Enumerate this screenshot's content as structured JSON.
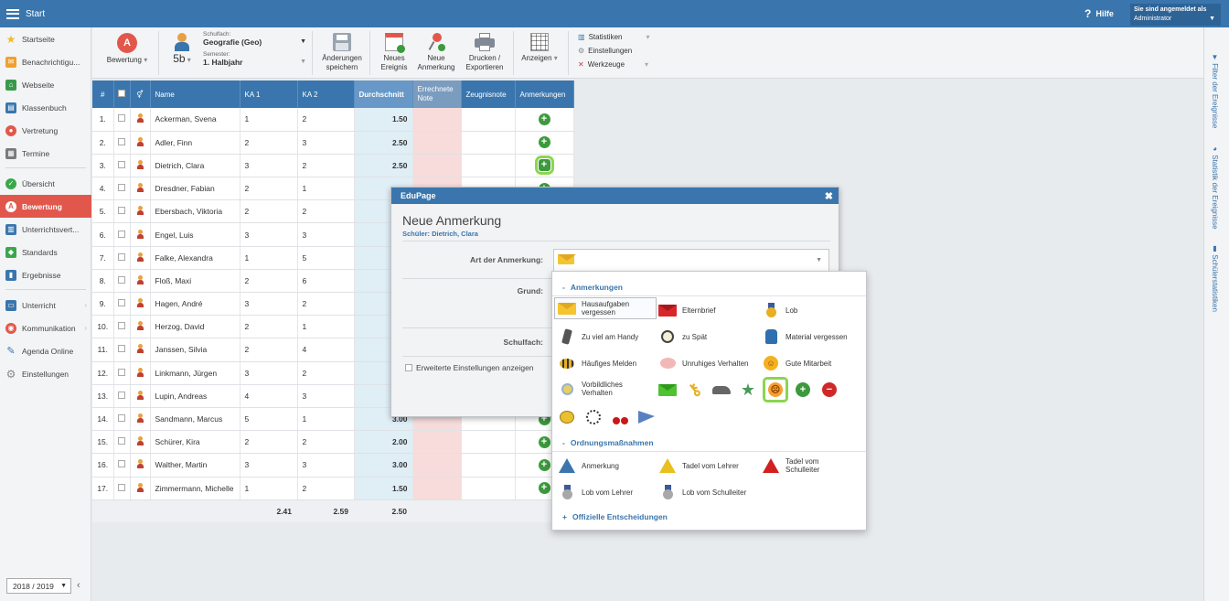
{
  "topbar": {
    "title": "Start",
    "help": "Hilfe",
    "login_line1": "Sie sind angemeldet als",
    "login_line2": "Administrator"
  },
  "sidebar": {
    "items": [
      {
        "label": "Startseite",
        "color": "#f2b92c",
        "glyph": "★"
      },
      {
        "label": "Benachrichtigu...",
        "color": "#f0a030",
        "glyph": "✉"
      },
      {
        "label": "Webseite",
        "color": "#3a9a4a",
        "glyph": "⌂"
      },
      {
        "label": "Klassenbuch",
        "color": "#3a76ad",
        "glyph": "▤"
      },
      {
        "label": "Vertretung",
        "color": "#e2574c",
        "glyph": "●"
      },
      {
        "label": "Termine",
        "color": "#7a7a7a",
        "glyph": "▦"
      },
      {
        "label": "Übersicht",
        "color": "#3aa84a",
        "glyph": "✓"
      },
      {
        "label": "Bewertung",
        "color": "#ffffff",
        "glyph": "A"
      },
      {
        "label": "Unterrichtsvert...",
        "color": "#3a76ad",
        "glyph": "▥"
      },
      {
        "label": "Standards",
        "color": "#3aa84a",
        "glyph": "◆"
      },
      {
        "label": "Ergebnisse",
        "color": "#3a76ad",
        "glyph": "▮"
      },
      {
        "label": "Unterricht",
        "color": "#3a76ad",
        "glyph": "▭"
      },
      {
        "label": "Kommunikation",
        "color": "#e2574c",
        "glyph": "◉"
      },
      {
        "label": "Agenda Online",
        "color": "#3a76ad",
        "glyph": "✎"
      },
      {
        "label": "Einstellungen",
        "color": "#8a8a8a",
        "glyph": "⚙"
      }
    ],
    "year": "2018 / 2019"
  },
  "toolbar": {
    "bewertung": "Bewertung",
    "class_value": "5b",
    "schulfach_caption": "Schulfach:",
    "schulfach_value": "Geografie (Geo)",
    "semester_caption": "Semester:",
    "semester_value": "1. Halbjahr",
    "save_l1": "Änderungen",
    "save_l2": "speichern",
    "event_l1": "Neues",
    "event_l2": "Ereignis",
    "remark_l1": "Neue",
    "remark_l2": "Anmerkung",
    "print_l1": "Drucken /",
    "print_l2": "Exportieren",
    "show": "Anzeigen",
    "statistiken": "Statistiken",
    "einstellungen": "Einstellungen",
    "werkzeuge": "Werkzeuge"
  },
  "table": {
    "headers": {
      "num": "#",
      "name": "Name",
      "ka1": "KA 1",
      "ka2": "KA 2",
      "avg": "Durchschnitt",
      "calc_l1": "Errechnete",
      "calc_l2": "Note",
      "zeugnis": "Zeugnisnote",
      "anm": "Anmerkungen"
    },
    "rows": [
      {
        "n": "1.",
        "name": "Ackerman, Svena",
        "ka1": "1",
        "ka2": "2",
        "avg": "1.50"
      },
      {
        "n": "2.",
        "name": "Adler, Finn",
        "ka1": "2",
        "ka2": "3",
        "avg": "2.50"
      },
      {
        "n": "3.",
        "name": "Dietrich, Clara",
        "ka1": "3",
        "ka2": "2",
        "avg": "2.50"
      },
      {
        "n": "4.",
        "name": "Dresdner, Fabian",
        "ka1": "2",
        "ka2": "1",
        "avg": ""
      },
      {
        "n": "5.",
        "name": "Ebersbach, Viktoria",
        "ka1": "2",
        "ka2": "2",
        "avg": ""
      },
      {
        "n": "6.",
        "name": "Engel, Luis",
        "ka1": "3",
        "ka2": "3",
        "avg": ""
      },
      {
        "n": "7.",
        "name": "Falke, Alexandra",
        "ka1": "1",
        "ka2": "5",
        "avg": ""
      },
      {
        "n": "8.",
        "name": "Floß, Maxi",
        "ka1": "2",
        "ka2": "6",
        "avg": ""
      },
      {
        "n": "9.",
        "name": "Hagen, André",
        "ka1": "3",
        "ka2": "2",
        "avg": ""
      },
      {
        "n": "10.",
        "name": "Herzog, David",
        "ka1": "2",
        "ka2": "1",
        "avg": ""
      },
      {
        "n": "11.",
        "name": "Janssen, Silvia",
        "ka1": "2",
        "ka2": "4",
        "avg": ""
      },
      {
        "n": "12.",
        "name": "Linkmann, Jürgen",
        "ka1": "3",
        "ka2": "2",
        "avg": ""
      },
      {
        "n": "13.",
        "name": "Lupin, Andreas",
        "ka1": "4",
        "ka2": "3",
        "avg": ""
      },
      {
        "n": "14.",
        "name": "Sandmann, Marcus",
        "ka1": "5",
        "ka2": "1",
        "avg": "3.00"
      },
      {
        "n": "15.",
        "name": "Schürer, Kira",
        "ka1": "2",
        "ka2": "2",
        "avg": "2.00"
      },
      {
        "n": "16.",
        "name": "Walther, Martin",
        "ka1": "3",
        "ka2": "3",
        "avg": "3.00"
      },
      {
        "n": "17.",
        "name": "Zimmermann, Michelle",
        "ka1": "1",
        "ka2": "2",
        "avg": "1.50"
      }
    ],
    "footer": {
      "ka1": "2.41",
      "ka2": "2.59",
      "avg": "2.50"
    }
  },
  "rail": {
    "filter": "Filter der Ereignisse",
    "stat": "Statistik der Ereignisse",
    "schueler": "Schülerstatistiken"
  },
  "modal": {
    "header": "EduPage",
    "title": "Neue Anmerkung",
    "student": "Schüler: Dietrich, Clara",
    "art_label": "Art der Anmerkung:",
    "grund_label": "Grund:",
    "schulfach_label": "Schulfach:",
    "advanced": "Erweiterte Einstellungen anzeigen"
  },
  "dropdown": {
    "sec1": "Anmerkungen",
    "opt_hausaufgaben_l1": "Hausaufgaben",
    "opt_hausaufgaben_l2": "vergessen",
    "opt_elternbrief": "Elternbrief",
    "opt_lob": "Lob",
    "opt_handy": "Zu viel am Handy",
    "opt_spaet": "zu Spät",
    "opt_material": "Material vergessen",
    "opt_melden": "Häufiges Melden",
    "opt_unruhig": "Unruhiges Verhalten",
    "opt_mitarbeit": "Gute Mitarbeit",
    "opt_vorbild_l1": "Vorbildliches",
    "opt_vorbild_l2": "Verhalten",
    "sec2": "Ordnungsmaßnahmen",
    "opt_anmerkung": "Anmerkung",
    "opt_tadel_lehrer": "Tadel vom Lehrer",
    "opt_tadel_schul_l1": "Tadel vom",
    "opt_tadel_schul_l2": "Schulleiter",
    "opt_lob_lehrer": "Lob vom Lehrer",
    "opt_lob_schul": "Lob vom Schulleiter",
    "sec3": "Offizielle Entscheidungen"
  }
}
